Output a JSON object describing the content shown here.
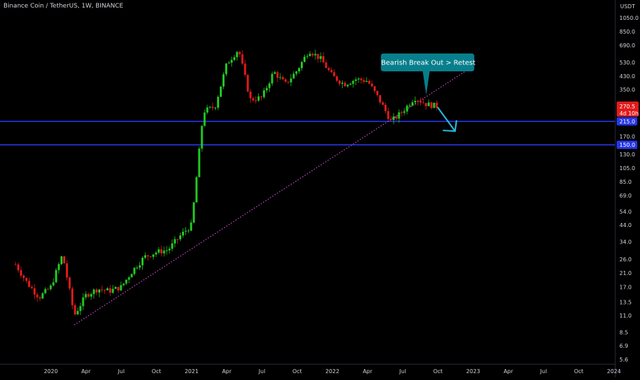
{
  "header": {
    "title": "Binance Coin / TetherUS, 1W, BINANCE"
  },
  "colors": {
    "background": "#000000",
    "up": "#22c922",
    "down": "#e01b1b",
    "level_line": "#2636e8",
    "trendline": "#d94fd9",
    "annotation_bg": "#087f8c",
    "arrow": "#2ab6d8",
    "axis_text": "#d1d4dc",
    "current_price_bg": "#e01b1b"
  },
  "chart_data": {
    "type": "candlestick",
    "y_scale": "log",
    "y_unit": "USDT",
    "y_ticks": [
      "1050.0",
      "850.0",
      "690.0",
      "530.0",
      "430.0",
      "350.0",
      "270.0",
      "210.0",
      "170.0",
      "130.0",
      "105.0",
      "85.0",
      "69.0",
      "54.0",
      "44.0",
      "34.0",
      "26.0",
      "21.0",
      "17.0",
      "13.5",
      "11.0",
      "8.5",
      "6.9",
      "5.6"
    ],
    "x_ticks": [
      "2020",
      "Apr",
      "Jul",
      "Oct",
      "2021",
      "Apr",
      "Jul",
      "Oct",
      "2022",
      "Apr",
      "Jul",
      "Oct",
      "2023",
      "Apr",
      "Jul",
      "Oct",
      "2024"
    ],
    "x_range": [
      "2019-10",
      "2024-01"
    ],
    "current_price": {
      "value": "270.5",
      "countdown": "4d 10h"
    },
    "horizontal_levels": [
      {
        "value": 215.0,
        "label": "215.0"
      },
      {
        "value": 150.0,
        "label": "150.0"
      }
    ],
    "trendline": {
      "start": {
        "date": "2020-03",
        "price": 9.5
      },
      "end": {
        "date": "2023-01",
        "price": 500
      },
      "style": "dotted"
    },
    "annotations": [
      {
        "text": "Bearish Break Out > Retest",
        "target": {
          "date": "2022-09",
          "price": 290
        }
      }
    ],
    "forecast_arrow": {
      "from": {
        "date": "2022-10",
        "price": 265
      },
      "to": {
        "date": "2022-11-15",
        "price": 185
      }
    },
    "price_path": [
      {
        "date": "2019-10",
        "price": 24
      },
      {
        "date": "2019-11",
        "price": 18
      },
      {
        "date": "2019-12",
        "price": 14.5
      },
      {
        "date": "2020-01",
        "price": 17
      },
      {
        "date": "2020-02",
        "price": 28
      },
      {
        "date": "2020-03",
        "price": 11
      },
      {
        "date": "2020-04",
        "price": 15
      },
      {
        "date": "2020-05",
        "price": 16.5
      },
      {
        "date": "2020-06",
        "price": 16
      },
      {
        "date": "2020-07",
        "price": 17
      },
      {
        "date": "2020-08",
        "price": 22
      },
      {
        "date": "2020-09",
        "price": 27
      },
      {
        "date": "2020-10",
        "price": 29
      },
      {
        "date": "2020-11",
        "price": 30
      },
      {
        "date": "2020-12",
        "price": 37
      },
      {
        "date": "2021-01",
        "price": 44
      },
      {
        "date": "2021-02",
        "price": 250
      },
      {
        "date": "2021-03",
        "price": 270
      },
      {
        "date": "2021-04",
        "price": 520
      },
      {
        "date": "2021-05",
        "price": 650
      },
      {
        "date": "2021-06",
        "price": 300
      },
      {
        "date": "2021-07",
        "price": 310
      },
      {
        "date": "2021-08",
        "price": 460
      },
      {
        "date": "2021-09",
        "price": 380
      },
      {
        "date": "2021-10",
        "price": 470
      },
      {
        "date": "2021-11",
        "price": 640
      },
      {
        "date": "2021-12",
        "price": 560
      },
      {
        "date": "2022-01",
        "price": 430
      },
      {
        "date": "2022-02",
        "price": 380
      },
      {
        "date": "2022-03",
        "price": 410
      },
      {
        "date": "2022-04",
        "price": 400
      },
      {
        "date": "2022-05",
        "price": 300
      },
      {
        "date": "2022-06",
        "price": 215
      },
      {
        "date": "2022-07",
        "price": 250
      },
      {
        "date": "2022-08",
        "price": 310
      },
      {
        "date": "2022-09",
        "price": 280
      },
      {
        "date": "2022-10",
        "price": 270.5
      }
    ]
  }
}
